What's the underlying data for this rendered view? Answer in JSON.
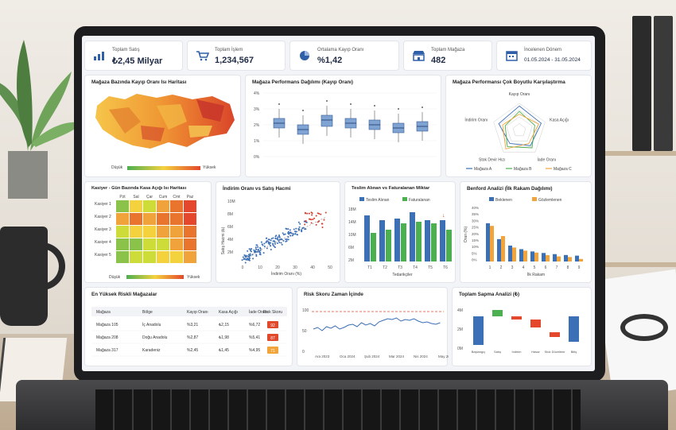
{
  "kpis": [
    {
      "label": "Toplam Satış",
      "value": "₺2,45 Milyar",
      "icon": "bar-chart-icon"
    },
    {
      "label": "Toplam İşlem",
      "value": "1,234,567",
      "icon": "cart-icon"
    },
    {
      "label": "Ortalama Kayıp Oranı",
      "value": "%1,42",
      "icon": "pie-chart-icon"
    },
    {
      "label": "Toplam Mağaza",
      "value": "482",
      "icon": "store-icon"
    },
    {
      "label": "İncelenen Dönem",
      "value": "01.05.2024 - 31.05.2024",
      "icon": "calendar-icon"
    }
  ],
  "panels": {
    "map_title": "Mağaza Bazında Kayıp Oranı Isı Haritası",
    "box_title": "Mağaza Performans Dağılımı (Kayıp Oranı)",
    "radar_title": "Mağaza Performansı Çok Boyutlu Karşılaştırma",
    "heat_title": "Kasiyer - Gün Bazında Kasa Açığı Isı Haritası",
    "scatter_title": "İndirim Oranı vs Satış Hacmi",
    "teslim_title": "Teslim Alınan vs Faturalanan Miktar",
    "benford_title": "Benford Analizi (İlk Rakam Dağılımı)",
    "risk_title": "En Yüksek Riskli Mağazalar",
    "trend_title": "Risk Skoru Zaman İçinde",
    "waterfall_title": "Toplam Sapma Analizi (₺)"
  },
  "map_legend": {
    "low": "Düşük",
    "high": "Yüksek"
  },
  "heat_legend": {
    "low": "Düşük",
    "high": "Yüksek"
  },
  "boxplot": {
    "yticks": [
      "4%",
      "3%",
      "2%",
      "1%",
      "0%"
    ]
  },
  "radar": {
    "axes": [
      "Kayıp Oranı",
      "Kasa Açığı",
      "İade Oranı",
      "Stok Devir Hızı",
      "İndirim Oranı"
    ],
    "legend": [
      "Mağaza A",
      "Mağaza B",
      "Mağaza C"
    ],
    "colors": [
      "#3b6fb6",
      "#4caf50",
      "#f2a33a"
    ]
  },
  "heatmap": {
    "days": [
      "Pzt",
      "Sal",
      "Çar",
      "Cum",
      "Cmt",
      "Paz"
    ],
    "cashiers": [
      "Kasiyer 1",
      "Kasiyer 2",
      "Kasiyer 3",
      "Kasiyer 4",
      "Kasiyer 5"
    ]
  },
  "scatter": {
    "yticks": [
      "10M",
      "8M",
      "6M",
      "4M",
      "2M"
    ],
    "xticks": [
      "0",
      "10",
      "20",
      "30",
      "40",
      "50"
    ],
    "xlabel": "İndirim Oranı (%)",
    "ylabel": "Satış Hacmi (₺)"
  },
  "teslim": {
    "legend": [
      "Teslim Alınan",
      "Faturalanan"
    ],
    "categories": [
      "T1",
      "T2",
      "T3",
      "T4",
      "T5",
      "T6"
    ],
    "yticks": [
      "18M",
      "14M",
      "10M",
      "6M",
      "2M"
    ],
    "xlabel": "Tedarikçiler"
  },
  "benford": {
    "legend": [
      "Beklenen",
      "Gözlemlenen"
    ],
    "digits": [
      "1",
      "2",
      "3",
      "4",
      "5",
      "6",
      "7",
      "8",
      "9"
    ],
    "yticks": [
      "40%",
      "35%",
      "30%",
      "25%",
      "20%",
      "15%",
      "10%",
      "5%",
      "0%"
    ],
    "xlabel": "İlk Rakam",
    "ylabel": "Oran (%)"
  },
  "risk_table": {
    "headers": [
      "Mağaza",
      "Bölge",
      "Kayıp Oranı",
      "Kasa Açığı",
      "İade Oranı",
      "Risk Skoru"
    ],
    "rows": [
      [
        "Mağaza 105",
        "İç Anadolu",
        "%3,21",
        "₺2,15",
        "%6,72",
        "92"
      ],
      [
        "Mağaza 208",
        "Doğu Anadolu",
        "%2,87",
        "₺1,98",
        "%5,41",
        "87"
      ],
      [
        "Mağaza 317",
        "Karadeniz",
        "%2,45",
        "₺1,45",
        "%4,95",
        "71"
      ]
    ]
  },
  "trend": {
    "yticks": [
      "100",
      "50",
      "0"
    ],
    "xticks": [
      "Ara 2023",
      "Oca 2024",
      "Şub 2024",
      "Mar 2024",
      "Nis 2024",
      "May 2024"
    ]
  },
  "waterfall": {
    "yticks": [
      "4M",
      "2M",
      "0M"
    ],
    "categories": [
      "Başlangıç",
      "Satış",
      "İndirim",
      "Hasar",
      "Stok Düzeltme",
      "Bitiş"
    ]
  }
}
